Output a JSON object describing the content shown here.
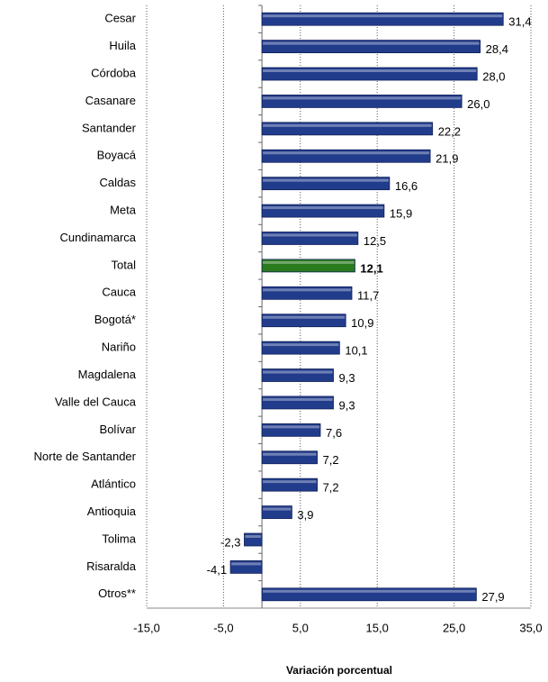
{
  "chart_data": {
    "type": "barh",
    "xlabel": "Variación porcentual",
    "categories": [
      "Cesar",
      "Huila",
      "Córdoba",
      "Casanare",
      "Santander",
      "Boyacá",
      "Caldas",
      "Meta",
      "Cundinamarca",
      "Total",
      "Cauca",
      "Bogotá*",
      "Nariño",
      "Magdalena",
      "Valle del Cauca",
      "Bolívar",
      "Norte de Santander",
      "Atlántico",
      "Antioquia",
      "Tolima",
      "Risaralda",
      "Otros**"
    ],
    "values": [
      31.4,
      28.4,
      28.0,
      26.0,
      22.2,
      21.9,
      16.6,
      15.9,
      12.5,
      12.1,
      11.7,
      10.9,
      10.1,
      9.3,
      9.3,
      7.6,
      7.2,
      7.2,
      3.9,
      -2.3,
      -4.1,
      27.9
    ],
    "value_labels": [
      "31,4",
      "28,4",
      "28,0",
      "26,0",
      "22,2",
      "21,9",
      "16,6",
      "15,9",
      "12,5",
      "12,1",
      "11,7",
      "10,9",
      "10,1",
      "9,3",
      "9,3",
      "7,6",
      "7,2",
      "7,2",
      "3,9",
      "-2,3",
      "-4,1",
      "27,9"
    ],
    "colors": [
      "#223c8c",
      "#223c8c",
      "#223c8c",
      "#223c8c",
      "#223c8c",
      "#223c8c",
      "#223c8c",
      "#223c8c",
      "#223c8c",
      "#2a7a1e",
      "#223c8c",
      "#223c8c",
      "#223c8c",
      "#223c8c",
      "#223c8c",
      "#223c8c",
      "#223c8c",
      "#223c8c",
      "#223c8c",
      "#223c8c",
      "#223c8c",
      "#223c8c"
    ],
    "xlim": [
      -15,
      35
    ],
    "xticks": [
      {
        "value": -15,
        "label": "-15,0"
      },
      {
        "value": -5,
        "label": "-5,0"
      },
      {
        "value": 5,
        "label": "5,0"
      },
      {
        "value": 15,
        "label": "15,0"
      },
      {
        "value": 25,
        "label": "25,0"
      },
      {
        "value": 35,
        "label": "35,0"
      }
    ],
    "grid": true
  }
}
